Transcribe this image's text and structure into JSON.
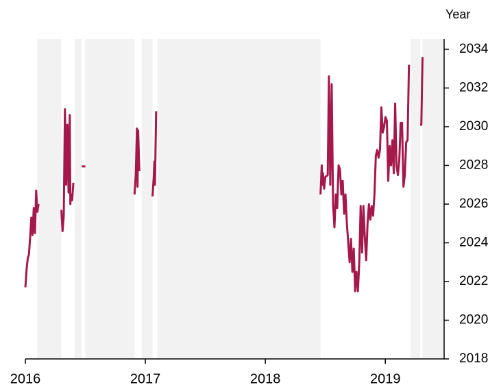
{
  "chart_data": {
    "type": "line",
    "ylabel": "Year",
    "xlim": [
      2016,
      2019.49
    ],
    "xticks": [
      2016,
      2017,
      2018,
      2019
    ],
    "ylim": [
      2018,
      2034.53
    ],
    "yticks": [
      2018,
      2020,
      2022,
      2024,
      2026,
      2028,
      2030,
      2032,
      2034
    ],
    "y_axis_side": "right",
    "grid": false,
    "shaded_regions": [
      [
        2016.1,
        2016.3
      ],
      [
        2016.41,
        2016.47
      ],
      [
        2016.5,
        2016.91
      ],
      [
        2016.97,
        2017.06
      ],
      [
        2017.1,
        2018.46
      ],
      [
        2019.21,
        2019.29
      ],
      [
        2019.31,
        2019.49
      ]
    ],
    "shade_color": "#f2f2f2",
    "series": [
      {
        "color": "#a5184b",
        "x": [
          2016.0,
          2016.01,
          2016.02,
          2016.03,
          2016.04,
          2016.05,
          2016.06,
          2016.07,
          2016.08,
          2016.09,
          2016.1,
          2016.11,
          null,
          2016.3,
          2016.31,
          2016.32,
          2016.33,
          2016.34,
          2016.35,
          2016.36,
          2016.37,
          2016.375,
          2016.38,
          2016.39,
          2016.4,
          null,
          2016.47,
          2016.5,
          null,
          2016.91,
          2016.92,
          2016.93,
          2016.935,
          2016.94,
          2016.95,
          null,
          2017.06,
          2017.07,
          2017.075,
          2017.08,
          2017.09,
          null,
          2018.46,
          2018.47,
          2018.475,
          2018.48,
          2018.49,
          2018.5,
          2018.52,
          2018.53,
          2018.5415,
          2018.553,
          2018.5645,
          2018.576,
          2018.5875,
          2018.599,
          2018.6105,
          2018.622,
          2018.6335,
          2018.645,
          2018.6565,
          2018.668,
          2018.6795,
          2018.691,
          2018.7025,
          2018.714,
          2018.7255,
          2018.737,
          2018.7485,
          2018.76,
          2018.7715,
          2018.783,
          2018.7945,
          2018.806,
          2018.8175,
          2018.829,
          2018.8405,
          2018.852,
          2018.8635,
          2018.875,
          2018.8865,
          2018.898,
          2018.9095,
          2018.921,
          2018.9325,
          2018.944,
          2018.9555,
          2018.967,
          2018.9785,
          2018.99,
          2019.0015,
          2019.013,
          2019.0245,
          2019.036,
          2019.0475,
          2019.059,
          2019.0705,
          2019.082,
          2019.0935,
          2019.105,
          2019.1165,
          2019.128,
          2019.1395,
          2019.151,
          2019.1625,
          2019.174,
          2019.1855,
          2019.197,
          null,
          2019.29,
          2019.3,
          2019.31
        ],
        "values": [
          2021.7,
          2022.6,
          2023.2,
          2023.4,
          2024.3,
          2025.3,
          2024.4,
          2025.8,
          2024.5,
          2026.7,
          2025.6,
          2026.0,
          null,
          2025.7,
          2024.6,
          2025.4,
          2030.9,
          2027.0,
          2030.1,
          2026.6,
          2030.6,
          2026.0,
          2026.5,
          2026.2,
          2027.1,
          null,
          2027.95,
          2027.95,
          null,
          2026.5,
          2027.5,
          2029.9,
          2026.9,
          2029.8,
          2027.7,
          null,
          2026.4,
          2027.4,
          2028.2,
          2027.0,
          2030.8,
          null,
          2026.5,
          2028.0,
          2027.0,
          2027.6,
          2026.8,
          2027.4,
          2027.5,
          2032.6,
          2027.0,
          2032.2,
          2026.0,
          2024.8,
          2026.5,
          2025.8,
          2028.0,
          2027.8,
          2026.5,
          2027.2,
          2025.5,
          2026.5,
          2025.0,
          2024.0,
          2023.0,
          2024.2,
          2022.5,
          2023.7,
          2021.5,
          2022.5,
          2021.5,
          2023.0,
          2025.9,
          2023.5,
          2025.9,
          2024.3,
          2023.1,
          2025.0,
          2026.0,
          2025.2,
          2025.9,
          2025.4,
          2026.5,
          2028.5,
          2028.8,
          2028.4,
          2028.8,
          2031.0,
          2029.7,
          2030.0,
          2030.5,
          2030.3,
          2027.2,
          2029.0,
          2028.0,
          2029.3,
          2027.6,
          2031.2,
          2028.0,
          2027.5,
          2028.3,
          2030.2,
          2030.2,
          2026.9,
          2027.5,
          2029.2,
          2029.3,
          2033.2,
          null,
          2030.1,
          2030.1,
          2033.6
        ]
      }
    ]
  }
}
